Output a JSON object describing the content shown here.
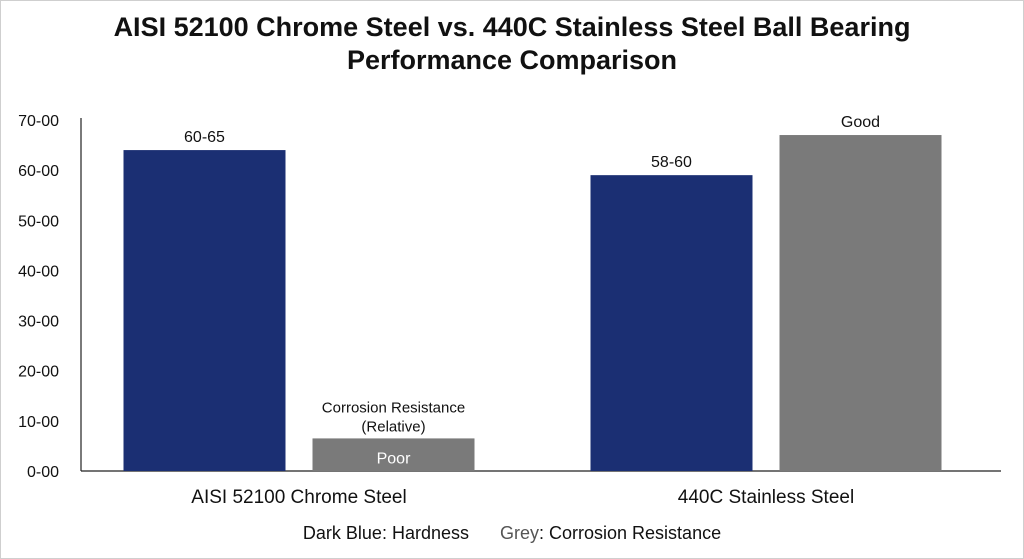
{
  "chart_data": {
    "type": "bar",
    "title_line1": "AISI 52100 Chrome Steel vs. 440C Stainless Steel Ball Bearing",
    "title_line2": "Performance Comparison",
    "categories": [
      "AISI 52100 Chrome Steel",
      "440C Stainless Steel"
    ],
    "yticks": [
      "0-00",
      "10-00",
      "20-00",
      "30-00",
      "40-00",
      "50-00",
      "60-00",
      "70-00"
    ],
    "ylim": [
      0,
      70
    ],
    "grid": false,
    "series": [
      {
        "name": "Hardness",
        "color": "#1b2f73",
        "values": [
          64,
          59
        ],
        "labels": [
          "60-65",
          "58-60"
        ]
      },
      {
        "name": "Corrosion Resistance",
        "color": "#7a7a7a",
        "values": [
          6.5,
          67
        ],
        "labels": [
          "Poor",
          "Good"
        ]
      }
    ],
    "annotations": [
      "Corrosion Resistance",
      "(Relative)"
    ],
    "legend": {
      "position": "bottom",
      "dark_blue_text": "Dark Blue: Hardness",
      "grey_word": "Grey",
      "grey_rest": ": Corrosion Resistance"
    }
  }
}
